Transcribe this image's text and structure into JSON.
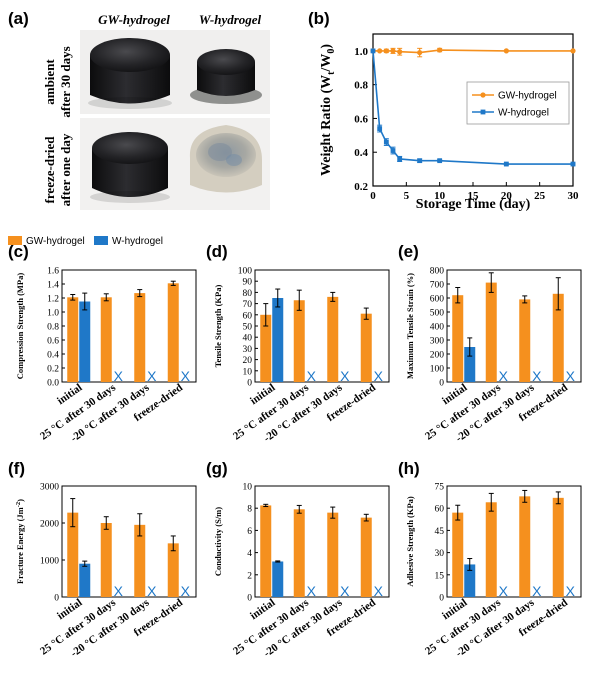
{
  "panel_labels": {
    "a": "(a)",
    "b": "(b)"
  },
  "photo": {
    "column_headers": [
      "GW-hydrogel",
      "W-hydrogel"
    ],
    "row_labels": [
      [
        "ambient",
        "after 30 days"
      ],
      [
        "freeze-dried",
        "after one day"
      ]
    ]
  },
  "colors": {
    "gw": "#f5901e",
    "w": "#1f78c8"
  },
  "legend": {
    "gw": "GW-hydrogel",
    "w": "W-hydrogel"
  },
  "absent_marker": "X",
  "chart_data": [
    {
      "id": "b",
      "label": "(b)",
      "type": "line",
      "xlabel": "Storage Time (day)",
      "ylabel_parts": {
        "main": "Weight Ratio (W",
        "sub1": "t",
        "mid": "/W",
        "sub2": "0",
        "end": ")"
      },
      "xlim": [
        0,
        30
      ],
      "ylim": [
        0.2,
        1.1
      ],
      "xticks": [
        0,
        5,
        10,
        15,
        20,
        25,
        30
      ],
      "yticks": [
        0.2,
        0.4,
        0.6,
        0.8,
        1.0
      ],
      "ytick_labels": [
        "0.2",
        "0.4",
        "0.6",
        "0.8",
        "1.0"
      ],
      "series": [
        {
          "name": "GW-hydrogel",
          "color": "#f5901e",
          "x": [
            0,
            1,
            2,
            3,
            4,
            7,
            10,
            20,
            30
          ],
          "y": [
            1.0,
            1.0,
            1.0,
            1.0,
            0.995,
            0.99,
            1.005,
            1.0,
            1.0
          ],
          "err": [
            0,
            0,
            0.01,
            0.015,
            0.02,
            0.025,
            0.01,
            0,
            0
          ]
        },
        {
          "name": "W-hydrogel",
          "color": "#1f78c8",
          "x": [
            0,
            1,
            2,
            3,
            4,
            7,
            10,
            20,
            30
          ],
          "y": [
            1.0,
            0.54,
            0.46,
            0.41,
            0.36,
            0.35,
            0.35,
            0.33,
            0.33
          ],
          "err": [
            0,
            0.02,
            0.02,
            0.02,
            0.015,
            0.01,
            0.005,
            0.005,
            0.005
          ]
        }
      ],
      "legend_position": "center-right"
    },
    {
      "id": "c",
      "label": "(c)",
      "type": "bar",
      "ylabel": "Compression Strength (MPa)",
      "categories": [
        "initial",
        "25 °C after 30 days",
        "-20 °C after 30 days",
        "freeze-dried"
      ],
      "ylim": [
        0,
        1.6
      ],
      "yticks": [
        0,
        0.2,
        0.4,
        0.6,
        0.8,
        1.0,
        1.2,
        1.4,
        1.6
      ],
      "ytick_labels": [
        "0.0",
        "0.2",
        "0.4",
        "0.6",
        "0.8",
        "1.0",
        "1.2",
        "1.4",
        "1.6"
      ],
      "series": [
        {
          "name": "GW-hydrogel",
          "values": [
            1.21,
            1.21,
            1.27,
            1.41
          ],
          "err": [
            0.04,
            0.05,
            0.05,
            0.03
          ]
        },
        {
          "name": "W-hydrogel",
          "values": [
            1.15,
            null,
            null,
            null
          ],
          "err": [
            0.12,
            null,
            null,
            null
          ]
        }
      ]
    },
    {
      "id": "d",
      "label": "(d)",
      "type": "bar",
      "ylabel": "Tensile Strength (KPa)",
      "categories": [
        "initial",
        "25 °C after 30 days",
        "-20 °C after 30 days",
        "freeze-dried"
      ],
      "ylim": [
        0,
        100
      ],
      "yticks": [
        0,
        10,
        20,
        30,
        40,
        50,
        60,
        70,
        80,
        90,
        100
      ],
      "ytick_labels": [
        "0",
        "10",
        "20",
        "30",
        "40",
        "50",
        "60",
        "70",
        "80",
        "90",
        "100"
      ],
      "series": [
        {
          "name": "GW-hydrogel",
          "values": [
            60,
            73,
            76,
            61
          ],
          "err": [
            10,
            9,
            4,
            5
          ]
        },
        {
          "name": "W-hydrogel",
          "values": [
            75,
            null,
            null,
            null
          ],
          "err": [
            8,
            null,
            null,
            null
          ]
        }
      ]
    },
    {
      "id": "e",
      "label": "(e)",
      "type": "bar",
      "ylabel": "Maximum Tensile Strain (%)",
      "categories": [
        "initial",
        "25 °C after 30 days",
        "-20 °C after 30 days",
        "freeze-dried"
      ],
      "ylim": [
        0,
        800
      ],
      "yticks": [
        0,
        100,
        200,
        300,
        400,
        500,
        600,
        700,
        800
      ],
      "ytick_labels": [
        "0",
        "100",
        "200",
        "300",
        "400",
        "500",
        "600",
        "700",
        "800"
      ],
      "series": [
        {
          "name": "GW-hydrogel",
          "values": [
            620,
            710,
            590,
            630
          ],
          "err": [
            55,
            70,
            25,
            115
          ]
        },
        {
          "name": "W-hydrogel",
          "values": [
            250,
            null,
            null,
            null
          ],
          "err": [
            65,
            null,
            null,
            null
          ]
        }
      ]
    },
    {
      "id": "f",
      "label": "(f)",
      "type": "bar",
      "ylabel_parts": {
        "main": "Fracture Energy (Jm",
        "sup": "-2",
        "end": ")"
      },
      "categories": [
        "initial",
        "25 °C after 30 days",
        "-20 °C after 30 days",
        "freeze-dried"
      ],
      "ylim": [
        0,
        3000
      ],
      "yticks": [
        0,
        1000,
        2000,
        3000
      ],
      "ytick_labels": [
        "0",
        "1000",
        "2000",
        "3000"
      ],
      "series": [
        {
          "name": "GW-hydrogel",
          "values": [
            2280,
            2000,
            1950,
            1450
          ],
          "err": [
            380,
            170,
            300,
            200
          ]
        },
        {
          "name": "W-hydrogel",
          "values": [
            900,
            null,
            null,
            null
          ],
          "err": [
            70,
            null,
            null,
            null
          ]
        }
      ]
    },
    {
      "id": "g",
      "label": "(g)",
      "type": "bar",
      "ylabel": "Conductivity (S/m)",
      "categories": [
        "initial",
        "25 °C after 30 days",
        "-20 °C after 30 days",
        "freeze-dried"
      ],
      "ylim": [
        0,
        10
      ],
      "yticks": [
        0,
        2,
        4,
        6,
        8,
        10
      ],
      "ytick_labels": [
        "0",
        "2",
        "4",
        "6",
        "8",
        "10"
      ],
      "series": [
        {
          "name": "GW-hydrogel",
          "values": [
            8.25,
            7.9,
            7.6,
            7.15
          ],
          "err": [
            0.1,
            0.35,
            0.5,
            0.3
          ]
        },
        {
          "name": "W-hydrogel",
          "values": [
            3.2,
            null,
            null,
            null
          ],
          "err": [
            0.05,
            null,
            null,
            null
          ]
        }
      ]
    },
    {
      "id": "h",
      "label": "(h)",
      "type": "bar",
      "ylabel": "Adhesive Strength (KPa)",
      "categories": [
        "initial",
        "25 °C after 30 days",
        "-20 °C after 30 days",
        "freeze-dried"
      ],
      "ylim": [
        0,
        75
      ],
      "yticks": [
        0,
        15,
        30,
        45,
        60,
        75
      ],
      "ytick_labels": [
        "0",
        "15",
        "30",
        "45",
        "60",
        "75"
      ],
      "series": [
        {
          "name": "GW-hydrogel",
          "values": [
            57,
            64,
            68,
            67
          ],
          "err": [
            5,
            6,
            4,
            4
          ]
        },
        {
          "name": "W-hydrogel",
          "values": [
            22,
            null,
            null,
            null
          ],
          "err": [
            4,
            null,
            null,
            null
          ]
        }
      ]
    }
  ]
}
